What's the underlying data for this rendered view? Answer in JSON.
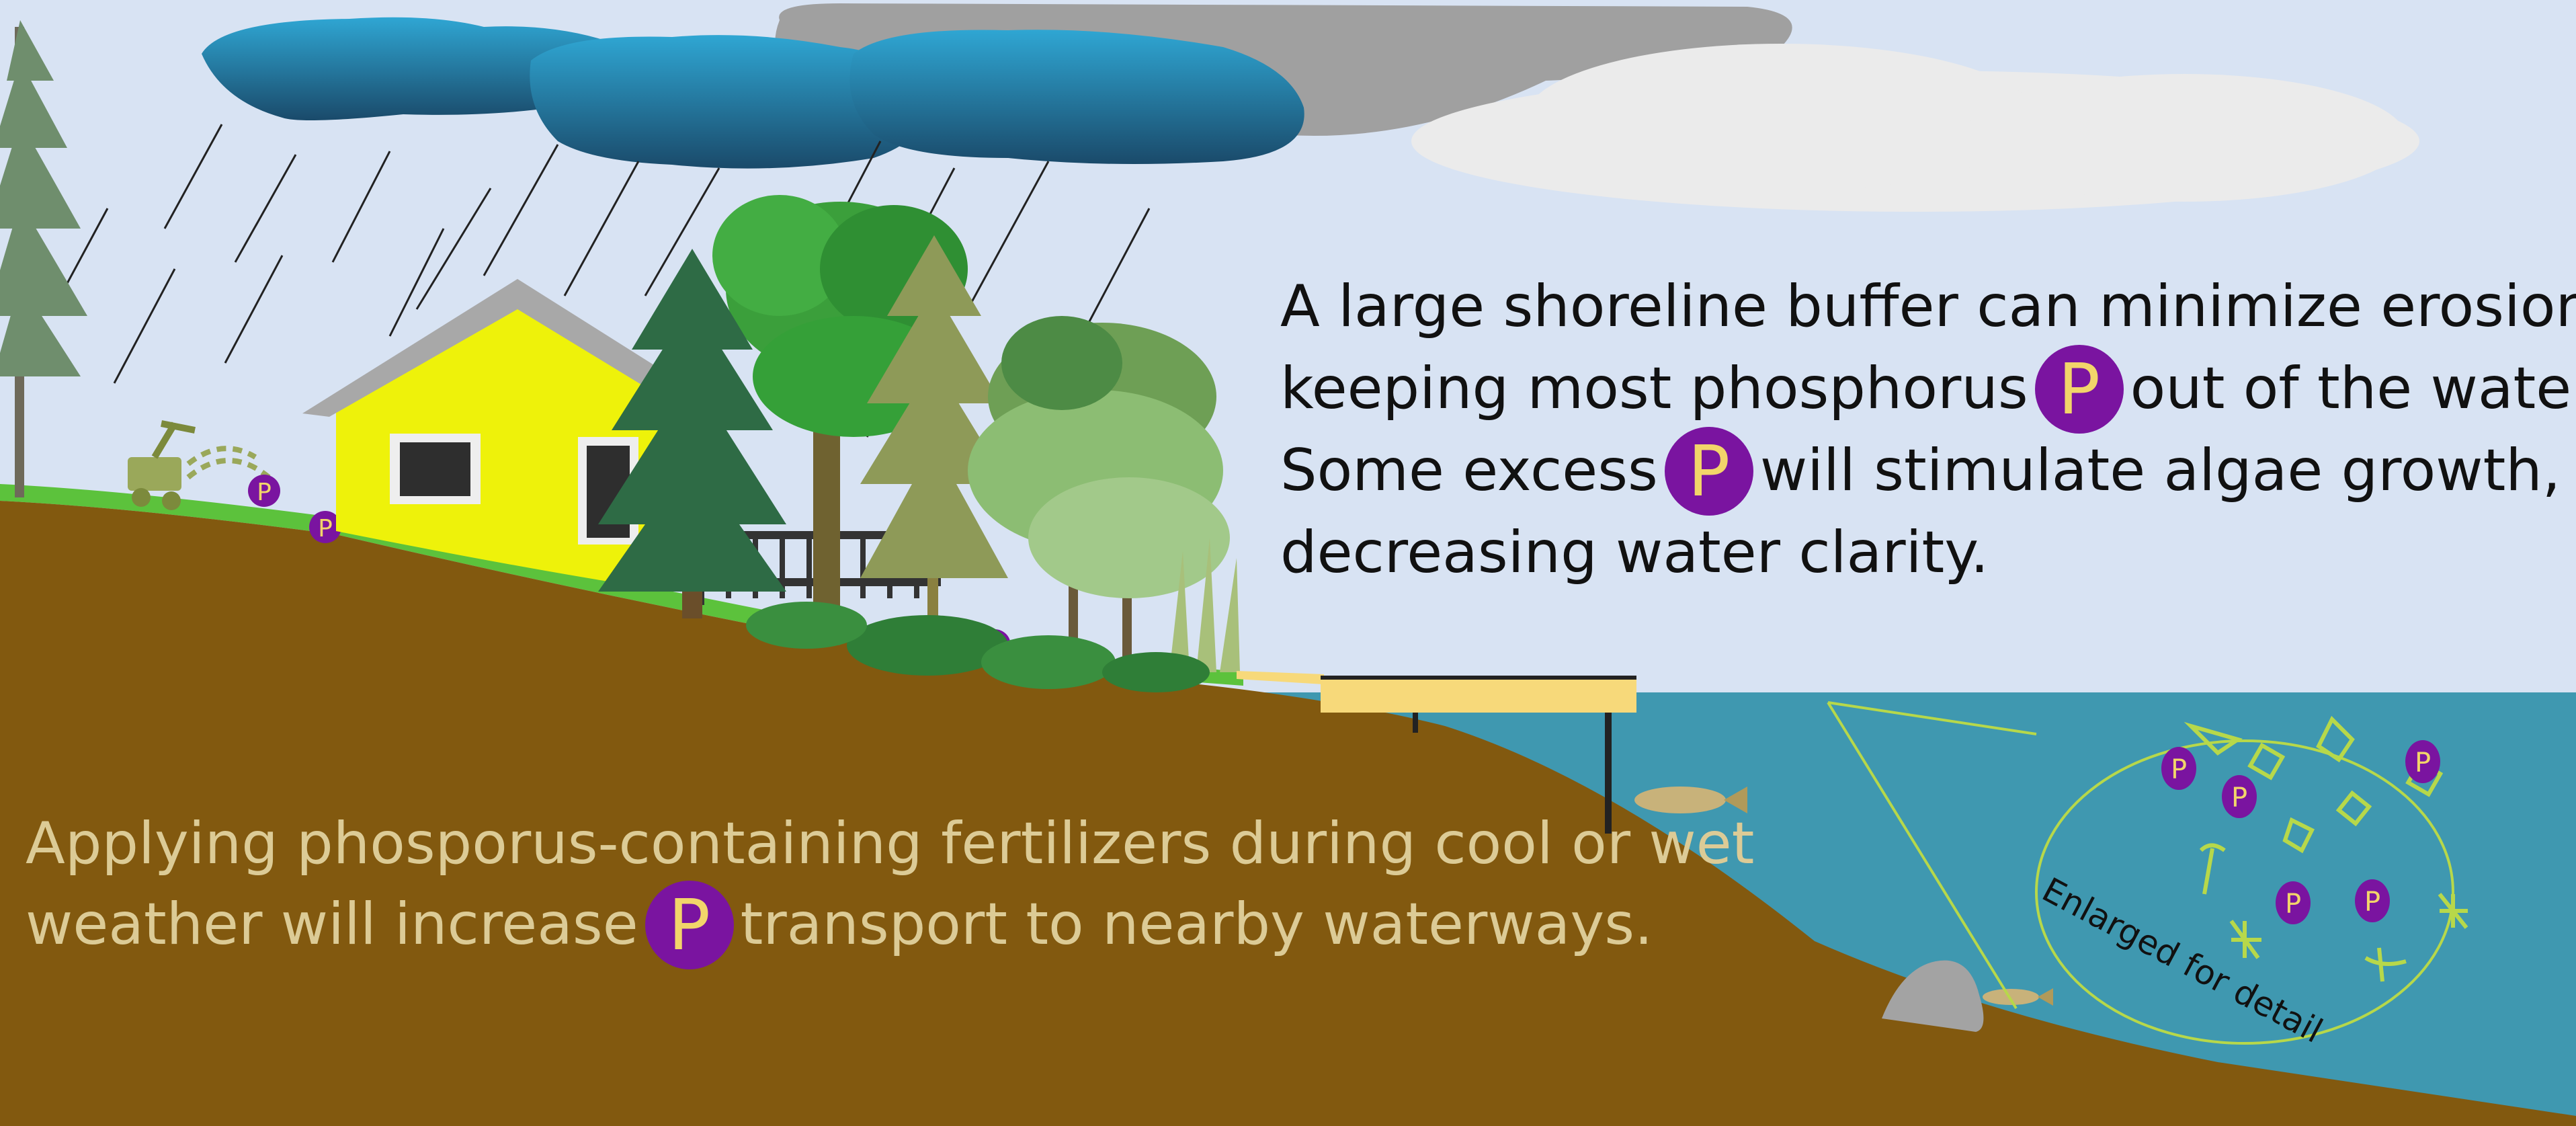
{
  "top_caption": {
    "line1": "A large shoreline buffer can minimize erosion,",
    "line2a": "keeping most phosphorus",
    "line2b": "out of the water.",
    "line3a": "Some excess",
    "line3b": "will stimulate algae growth,",
    "line4": "decreasing water clarity."
  },
  "bottom_caption": {
    "line1": "Applying phosporus-containing fertilizers during cool or wet",
    "line2a": "weather will increase",
    "line2b": "transport to nearby waterways."
  },
  "phosphorus_symbol": "P",
  "inset_label": "Enlarged for detail",
  "colors": {
    "sky": "#d8e3f3",
    "soil": "#82590f",
    "grass": "#5cc23c",
    "water": "#3f98b0",
    "house": "#eef20a",
    "phosphorus_badge": "#7a14a0",
    "phosphorus_letter": "#f2d56a",
    "storm_cloud": "#2a8bb3",
    "algae": "#b7d84a",
    "dock": "#f7d97a"
  },
  "icons": [
    "storm-cloud-icon",
    "rain-icon",
    "fertilizer-spreader-icon",
    "house-icon",
    "deck-icon",
    "tree-icon",
    "dock-icon",
    "fish-icon",
    "rock-icon",
    "algae-icon",
    "phosphorus-icon"
  ]
}
